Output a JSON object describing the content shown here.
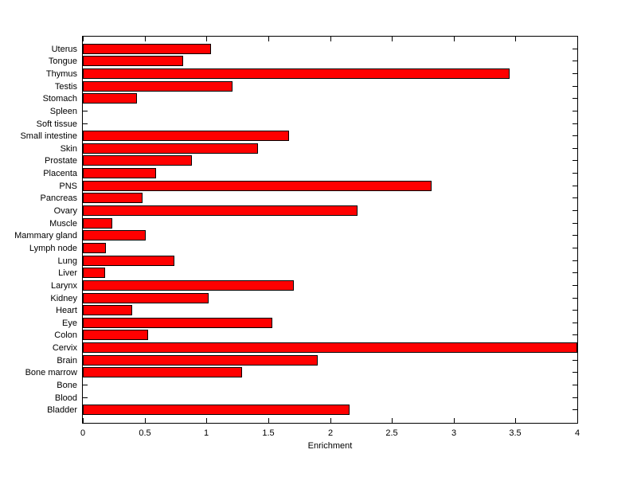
{
  "chart_data": {
    "type": "bar",
    "orientation": "horizontal",
    "title": "",
    "xlabel": "Enrichment",
    "ylabel": "",
    "xlim": [
      0,
      4
    ],
    "xticks": [
      0,
      0.5,
      1,
      1.5,
      2,
      2.5,
      3,
      3.5,
      4
    ],
    "xtick_labels": [
      "0",
      "0.5",
      "1",
      "1.5",
      "2",
      "2.5",
      "3",
      "3.5",
      "4"
    ],
    "grid": false,
    "legend_position": "none",
    "bar_color": "#ff0000",
    "bar_edge_color": "#000000",
    "background_color": "#ffffff",
    "axis_color": "#000000",
    "categories": [
      "Uterus",
      "Tongue",
      "Thymus",
      "Testis",
      "Stomach",
      "Spleen",
      "Soft tissue",
      "Small intestine",
      "Skin",
      "Prostate",
      "Placenta",
      "PNS",
      "Pancreas",
      "Ovary",
      "Muscle",
      "Mammary gland",
      "Lymph node",
      "Lung",
      "Liver",
      "Larynx",
      "Kidney",
      "Heart",
      "Eye",
      "Colon",
      "Cervix",
      "Brain",
      "Bone marrow",
      "Bone",
      "Blood",
      "Bladder"
    ],
    "values": [
      1.04,
      0.81,
      3.45,
      1.21,
      0.44,
      0,
      0,
      1.67,
      1.42,
      0.88,
      0.59,
      2.82,
      0.48,
      2.22,
      0.24,
      0.51,
      0.19,
      0.74,
      0.18,
      1.71,
      1.02,
      0.4,
      1.53,
      0.53,
      4.0,
      1.9,
      1.29,
      0,
      0,
      2.16
    ],
    "category_order": "top-to-bottom"
  }
}
